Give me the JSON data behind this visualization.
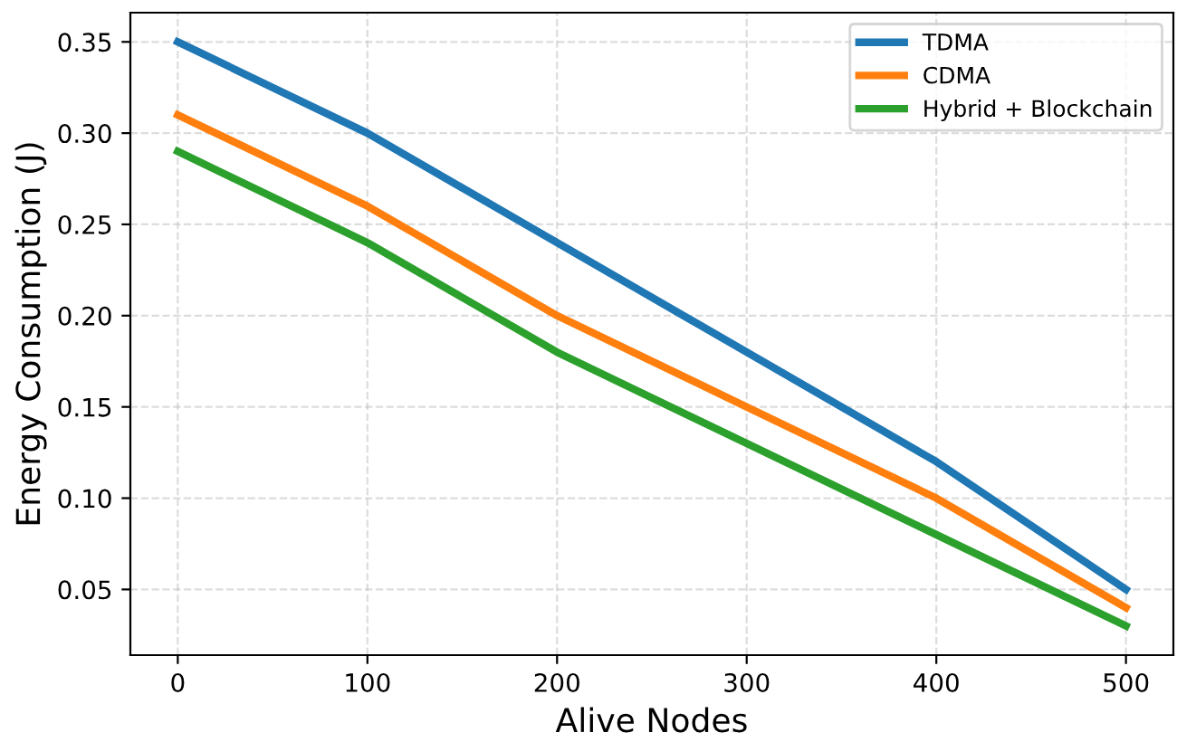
{
  "chart_data": {
    "type": "line",
    "xlabel": "Alive Nodes",
    "ylabel": "Energy Consumption (J)",
    "x": [
      0,
      100,
      200,
      300,
      400,
      500
    ],
    "series": [
      {
        "name": "TDMA",
        "color": "#1f77b4",
        "values": [
          0.35,
          0.3,
          0.24,
          0.18,
          0.12,
          0.05
        ]
      },
      {
        "name": "CDMA",
        "color": "#ff7f0e",
        "values": [
          0.31,
          0.26,
          0.2,
          0.15,
          0.1,
          0.04
        ]
      },
      {
        "name": "Hybrid + Blockchain",
        "color": "#2ca02c",
        "values": [
          0.29,
          0.24,
          0.18,
          0.13,
          0.08,
          0.03
        ]
      }
    ],
    "xlim": [
      -25,
      525
    ],
    "xticks": [
      0,
      100,
      200,
      300,
      400,
      500
    ],
    "ylim": [
      0.014,
      0.366
    ],
    "yticks": [
      0.05,
      {
        "value": 0.1,
        "label": "0.10"
      },
      0.15,
      {
        "value": 0.2,
        "label": "0.20"
      },
      0.25,
      {
        "value": 0.3,
        "label": "0.30"
      },
      0.35
    ],
    "grid": true,
    "line_style": "solid",
    "marker": "none",
    "legend": "top right"
  }
}
